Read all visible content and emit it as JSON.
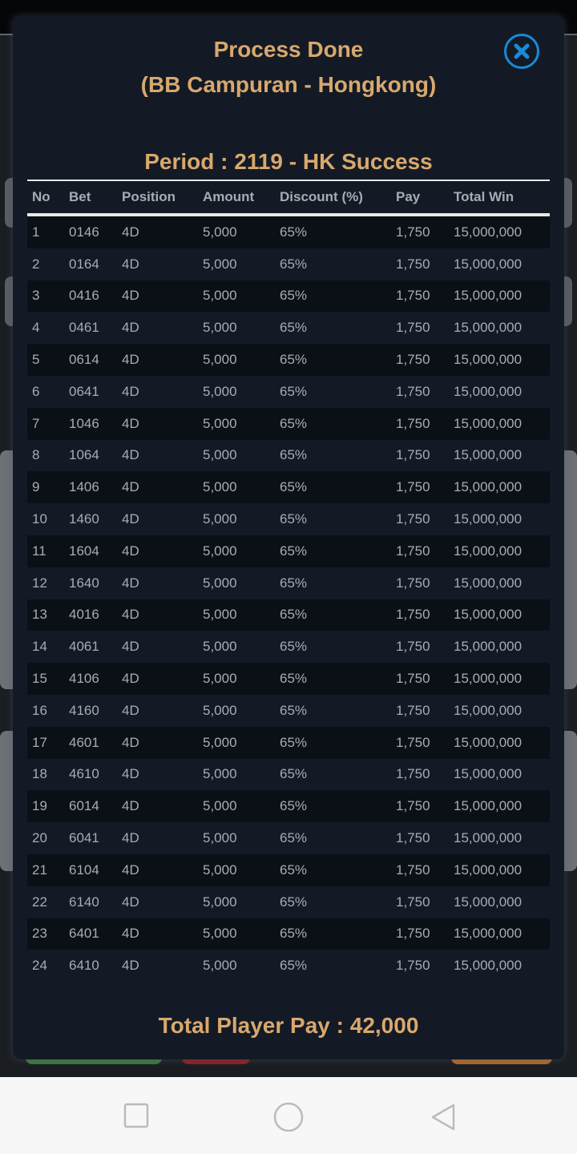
{
  "modal": {
    "title": "Process Done",
    "subtitle": "(BB Campuran - Hongkong)",
    "period": "Period : 2119 - HK Success",
    "close_icon": "close-circle-icon",
    "accent": "#d8a86d",
    "close_color": "#1a8ad6",
    "table": {
      "headers": [
        "No",
        "Bet",
        "Position",
        "Amount",
        "Discount (%)",
        "Pay",
        "Total Win"
      ],
      "rows": [
        [
          "1",
          "0146",
          "4D",
          "5,000",
          "65%",
          "1,750",
          "15,000,000"
        ],
        [
          "2",
          "0164",
          "4D",
          "5,000",
          "65%",
          "1,750",
          "15,000,000"
        ],
        [
          "3",
          "0416",
          "4D",
          "5,000",
          "65%",
          "1,750",
          "15,000,000"
        ],
        [
          "4",
          "0461",
          "4D",
          "5,000",
          "65%",
          "1,750",
          "15,000,000"
        ],
        [
          "5",
          "0614",
          "4D",
          "5,000",
          "65%",
          "1,750",
          "15,000,000"
        ],
        [
          "6",
          "0641",
          "4D",
          "5,000",
          "65%",
          "1,750",
          "15,000,000"
        ],
        [
          "7",
          "1046",
          "4D",
          "5,000",
          "65%",
          "1,750",
          "15,000,000"
        ],
        [
          "8",
          "1064",
          "4D",
          "5,000",
          "65%",
          "1,750",
          "15,000,000"
        ],
        [
          "9",
          "1406",
          "4D",
          "5,000",
          "65%",
          "1,750",
          "15,000,000"
        ],
        [
          "10",
          "1460",
          "4D",
          "5,000",
          "65%",
          "1,750",
          "15,000,000"
        ],
        [
          "11",
          "1604",
          "4D",
          "5,000",
          "65%",
          "1,750",
          "15,000,000"
        ],
        [
          "12",
          "1640",
          "4D",
          "5,000",
          "65%",
          "1,750",
          "15,000,000"
        ],
        [
          "13",
          "4016",
          "4D",
          "5,000",
          "65%",
          "1,750",
          "15,000,000"
        ],
        [
          "14",
          "4061",
          "4D",
          "5,000",
          "65%",
          "1,750",
          "15,000,000"
        ],
        [
          "15",
          "4106",
          "4D",
          "5,000",
          "65%",
          "1,750",
          "15,000,000"
        ],
        [
          "16",
          "4160",
          "4D",
          "5,000",
          "65%",
          "1,750",
          "15,000,000"
        ],
        [
          "17",
          "4601",
          "4D",
          "5,000",
          "65%",
          "1,750",
          "15,000,000"
        ],
        [
          "18",
          "4610",
          "4D",
          "5,000",
          "65%",
          "1,750",
          "15,000,000"
        ],
        [
          "19",
          "6014",
          "4D",
          "5,000",
          "65%",
          "1,750",
          "15,000,000"
        ],
        [
          "20",
          "6041",
          "4D",
          "5,000",
          "65%",
          "1,750",
          "15,000,000"
        ],
        [
          "21",
          "6104",
          "4D",
          "5,000",
          "65%",
          "1,750",
          "15,000,000"
        ],
        [
          "22",
          "6140",
          "4D",
          "5,000",
          "65%",
          "1,750",
          "15,000,000"
        ],
        [
          "23",
          "6401",
          "4D",
          "5,000",
          "65%",
          "1,750",
          "15,000,000"
        ],
        [
          "24",
          "6410",
          "4D",
          "5,000",
          "65%",
          "1,750",
          "15,000,000"
        ]
      ]
    },
    "total": "Total Player Pay : 42,000"
  },
  "navbar": {
    "icons": [
      "recent-apps-icon",
      "home-icon",
      "back-icon"
    ]
  }
}
